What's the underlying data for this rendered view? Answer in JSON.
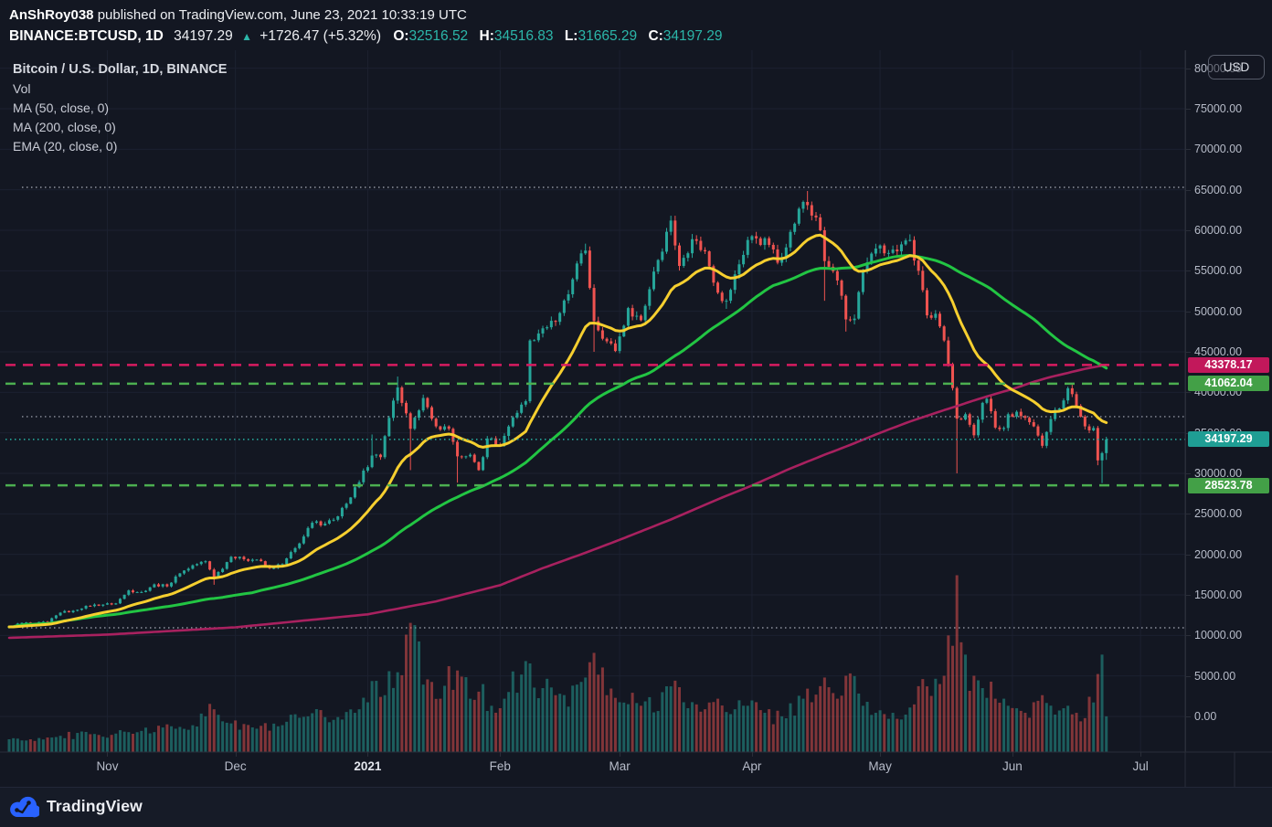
{
  "header": {
    "author": "AnShRoy038",
    "published": " published on TradingView.com, June 23, 2021 10:33:19 UTC",
    "symbol": "BINANCE:BTCUSD, 1D",
    "last_price": "34197.29",
    "up_arrow": "▲",
    "change": "+1726.47 (+5.32%)",
    "ohlc": [
      {
        "label": "O:",
        "value": "32516.52"
      },
      {
        "label": "H:",
        "value": "34516.83"
      },
      {
        "label": "L:",
        "value": "31665.29"
      },
      {
        "label": "C:",
        "value": "34197.29"
      }
    ]
  },
  "legend": {
    "title": "Bitcoin / U.S. Dollar, 1D, BINANCE",
    "items": [
      "Vol",
      "MA (50, close, 0)",
      "MA (200, close, 0)",
      "EMA (20, close, 0)"
    ]
  },
  "axis": {
    "currency_button": "USD"
  },
  "footer": {
    "brand": "TradingView"
  },
  "colors": {
    "background": "#131722",
    "panel_border": "#2a2e39",
    "grid": "#1c2130",
    "axis_text": "#b7bcc9",
    "text_primary": "#eceef2",
    "accent_teal": "#2cb6a9",
    "up": "#26a69a",
    "down": "#ef5350",
    "vol_up": "rgba(38,166,154,0.5)",
    "vol_down": "rgba(239,83,80,0.5)",
    "ema20": "#f6cf2f",
    "ma50": "#22c543",
    "ma200": "#a8215f",
    "dotted_gray": "#aeb3bf",
    "brand_blue": "#2962ff"
  },
  "chart_data": {
    "type": "candlestick",
    "title": "Bitcoin / U.S. Dollar, 1D, BINANCE",
    "exchange": "BINANCE",
    "interval": "1D",
    "x_axis": {
      "start_date": "2020-10-09",
      "labels": [
        {
          "label": "Nov",
          "day": 23
        },
        {
          "label": "Dec",
          "day": 53
        },
        {
          "label": "2021",
          "day": 84,
          "bold": true
        },
        {
          "label": "Feb",
          "day": 115
        },
        {
          "label": "Mar",
          "day": 143
        },
        {
          "label": "Apr",
          "day": 174
        },
        {
          "label": "May",
          "day": 204
        },
        {
          "label": "Jun",
          "day": 235
        },
        {
          "label": "Jul",
          "day": 265
        }
      ],
      "last_day": 257
    },
    "y_axis": {
      "min": 0,
      "max": 80000,
      "tick_step": 5000,
      "side": "right"
    },
    "price_anchors": [
      [
        0,
        11050
      ],
      [
        3,
        11550
      ],
      [
        6,
        11480
      ],
      [
        9,
        11680
      ],
      [
        12,
        12800
      ],
      [
        15,
        13050
      ],
      [
        18,
        13650
      ],
      [
        22,
        13800
      ],
      [
        25,
        13950
      ],
      [
        28,
        15550
      ],
      [
        31,
        15350
      ],
      [
        34,
        16300
      ],
      [
        37,
        16050
      ],
      [
        40,
        17650
      ],
      [
        43,
        18650
      ],
      [
        46,
        19150
      ],
      [
        48,
        17150,
        null,
        16250
      ],
      [
        52,
        19700
      ],
      [
        55,
        19400
      ],
      [
        58,
        19350
      ],
      [
        61,
        18300
      ],
      [
        64,
        18800
      ],
      [
        68,
        21350
      ],
      [
        71,
        23900
      ],
      [
        74,
        23800
      ],
      [
        77,
        24700
      ],
      [
        79,
        26250
      ],
      [
        82,
        28900
      ],
      [
        85,
        32200,
        34800,
        null
      ],
      [
        87,
        32000
      ],
      [
        89,
        36850
      ],
      [
        91,
        40600,
        41950,
        null
      ],
      [
        94,
        35500,
        null,
        30400
      ],
      [
        97,
        39300
      ],
      [
        100,
        35800
      ],
      [
        103,
        35500
      ],
      [
        105,
        32100,
        null,
        28850
      ],
      [
        108,
        32300
      ],
      [
        110,
        30400
      ],
      [
        112,
        34300
      ],
      [
        115,
        33500
      ],
      [
        118,
        36900
      ],
      [
        121,
        38900
      ],
      [
        122,
        46400
      ],
      [
        125,
        47900
      ],
      [
        128,
        48700
      ],
      [
        131,
        52100
      ],
      [
        133,
        55900
      ],
      [
        135,
        57500,
        58350,
        null
      ],
      [
        137,
        48800,
        null,
        45000
      ],
      [
        140,
        46300
      ],
      [
        142,
        45100
      ],
      [
        145,
        50400
      ],
      [
        148,
        48900
      ],
      [
        151,
        54900
      ],
      [
        155,
        61200,
        61800,
        null
      ],
      [
        157,
        55600
      ],
      [
        160,
        58900
      ],
      [
        163,
        57400
      ],
      [
        166,
        52300
      ],
      [
        168,
        51300,
        null,
        50300
      ],
      [
        171,
        55800
      ],
      [
        173,
        58800
      ],
      [
        175,
        59000
      ],
      [
        178,
        58200
      ],
      [
        180,
        56000
      ],
      [
        183,
        59800
      ],
      [
        186,
        63500
      ],
      [
        187,
        63100,
        64850,
        null
      ],
      [
        190,
        60000
      ],
      [
        191,
        56200,
        null,
        51300
      ],
      [
        194,
        53800
      ],
      [
        196,
        49000,
        null,
        47500
      ],
      [
        198,
        49100
      ],
      [
        200,
        55000
      ],
      [
        203,
        57750
      ],
      [
        206,
        57200
      ],
      [
        208,
        57400
      ],
      [
        211,
        58800,
        59500,
        null
      ],
      [
        213,
        55000
      ],
      [
        215,
        49500
      ],
      [
        217,
        49700
      ],
      [
        219,
        46400
      ],
      [
        220,
        43500
      ],
      [
        222,
        36750,
        null,
        30000
      ],
      [
        224,
        37300
      ],
      [
        226,
        34700
      ],
      [
        228,
        38700
      ],
      [
        229,
        39200
      ],
      [
        231,
        35650
      ],
      [
        233,
        35600
      ],
      [
        234,
        37300
      ],
      [
        236,
        37600
      ],
      [
        238,
        36850
      ],
      [
        240,
        35800
      ],
      [
        242,
        33400
      ],
      [
        244,
        36700
      ],
      [
        247,
        39000
      ],
      [
        248,
        40500
      ],
      [
        250,
        38350
      ],
      [
        252,
        35800
      ],
      [
        254,
        35600
      ],
      [
        255,
        31600,
        null,
        31000
      ],
      [
        256,
        32500,
        null,
        28800
      ],
      [
        257,
        34197,
        34516,
        31665
      ]
    ],
    "volume_anchors": [
      [
        0,
        0.07
      ],
      [
        10,
        0.08
      ],
      [
        20,
        0.1
      ],
      [
        30,
        0.11
      ],
      [
        40,
        0.14
      ],
      [
        46,
        0.2
      ],
      [
        48,
        0.24
      ],
      [
        52,
        0.16
      ],
      [
        58,
        0.13
      ],
      [
        64,
        0.15
      ],
      [
        70,
        0.2
      ],
      [
        76,
        0.18
      ],
      [
        82,
        0.24
      ],
      [
        85,
        0.4
      ],
      [
        88,
        0.32
      ],
      [
        91,
        0.45
      ],
      [
        94,
        0.73
      ],
      [
        97,
        0.38
      ],
      [
        101,
        0.3
      ],
      [
        105,
        0.46
      ],
      [
        108,
        0.3
      ],
      [
        110,
        0.34
      ],
      [
        113,
        0.26
      ],
      [
        116,
        0.3
      ],
      [
        122,
        0.5
      ],
      [
        125,
        0.36
      ],
      [
        128,
        0.32
      ],
      [
        133,
        0.38
      ],
      [
        135,
        0.42
      ],
      [
        137,
        0.56
      ],
      [
        140,
        0.32
      ],
      [
        143,
        0.28
      ],
      [
        148,
        0.26
      ],
      [
        155,
        0.37
      ],
      [
        158,
        0.28
      ],
      [
        163,
        0.24
      ],
      [
        166,
        0.3
      ],
      [
        170,
        0.24
      ],
      [
        173,
        0.26
      ],
      [
        177,
        0.22
      ],
      [
        181,
        0.2
      ],
      [
        186,
        0.3
      ],
      [
        188,
        0.28
      ],
      [
        191,
        0.42
      ],
      [
        194,
        0.3
      ],
      [
        196,
        0.43
      ],
      [
        200,
        0.26
      ],
      [
        203,
        0.22
      ],
      [
        207,
        0.22
      ],
      [
        211,
        0.25
      ],
      [
        215,
        0.37
      ],
      [
        219,
        0.43
      ],
      [
        221,
        0.6
      ],
      [
        222,
        1.0
      ],
      [
        223,
        0.62
      ],
      [
        224,
        0.55
      ],
      [
        226,
        0.43
      ],
      [
        228,
        0.36
      ],
      [
        231,
        0.3
      ],
      [
        234,
        0.26
      ],
      [
        238,
        0.22
      ],
      [
        240,
        0.28
      ],
      [
        242,
        0.32
      ],
      [
        245,
        0.21
      ],
      [
        248,
        0.26
      ],
      [
        250,
        0.22
      ],
      [
        252,
        0.19
      ],
      [
        255,
        0.44
      ],
      [
        256,
        0.55
      ],
      [
        257,
        0.2
      ]
    ],
    "ma200_anchors": [
      [
        0,
        9700
      ],
      [
        23,
        10100
      ],
      [
        53,
        11000
      ],
      [
        84,
        12600
      ],
      [
        100,
        14200
      ],
      [
        115,
        16200
      ],
      [
        125,
        18300
      ],
      [
        135,
        20200
      ],
      [
        143,
        21800
      ],
      [
        155,
        24300
      ],
      [
        166,
        26800
      ],
      [
        174,
        28500
      ],
      [
        183,
        30600
      ],
      [
        191,
        32300
      ],
      [
        196,
        33300
      ],
      [
        204,
        35000
      ],
      [
        211,
        36400
      ],
      [
        215,
        37100
      ],
      [
        219,
        37800
      ],
      [
        222,
        38300
      ],
      [
        226,
        39000
      ],
      [
        231,
        39800
      ],
      [
        235,
        40400
      ],
      [
        240,
        41300
      ],
      [
        244,
        41900
      ],
      [
        248,
        42400
      ],
      [
        252,
        42900
      ],
      [
        255,
        43200
      ],
      [
        257,
        43378
      ]
    ],
    "levels": [
      {
        "value": 43378.17,
        "label": "43378.17",
        "color": "#d81b60",
        "badge_color": "#c2185b",
        "style": "dashed",
        "badge": true
      },
      {
        "value": 41062.04,
        "label": "41062.04",
        "color": "#4caf50",
        "badge_color": "#43a047",
        "style": "dashed",
        "badge": true
      },
      {
        "value": 28523.78,
        "label": "28523.78",
        "color": "#4caf50",
        "badge_color": "#43a047",
        "style": "dashed",
        "badge": true
      },
      {
        "value": 34197.29,
        "label": "34197.29",
        "color": "#26a69a",
        "badge_color": "#1f9e94",
        "style": "dotted",
        "badge": true,
        "role": "current-price-line"
      },
      {
        "value": 65300,
        "color": "#aeb3bf",
        "style": "dotted",
        "badge": false
      },
      {
        "value": 37000,
        "color": "#aeb3bf",
        "style": "dotted",
        "badge": false
      },
      {
        "value": 10940,
        "color": "#aeb3bf",
        "style": "dotted",
        "badge": false
      }
    ]
  }
}
